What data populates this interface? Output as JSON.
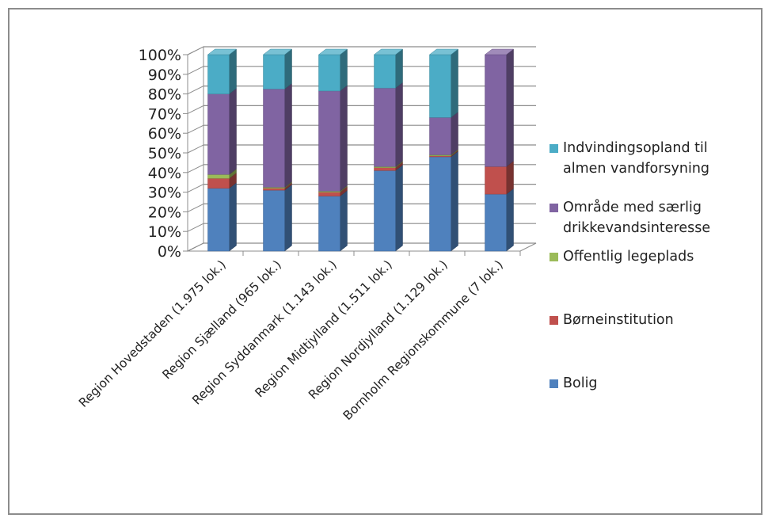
{
  "chart_data": {
    "type": "bar",
    "stacked": true,
    "three_d": true,
    "categories": [
      "Region Hovedstaden (1.975 lok.)",
      "Region Sjælland (965 lok.)",
      "Region Syddanmark (1.143 lok.)",
      "Region Midtjylland (1.511 lok.)",
      "Region Nordjylland (1.129 lok.)",
      "Bornholm Regionskommune (7 lok.)"
    ],
    "series": [
      {
        "name": "Bolig",
        "color": "#4F81BD",
        "values": [
          32,
          31,
          28,
          41,
          48,
          29
        ]
      },
      {
        "name": "Børneinstitution",
        "color": "#C0504D",
        "values": [
          5,
          1,
          2,
          1.5,
          0.5,
          14
        ]
      },
      {
        "name": "Offentlig legeplads",
        "color": "#9BBB59",
        "values": [
          2,
          0.5,
          0.5,
          0.5,
          0.5,
          0
        ]
      },
      {
        "name": "Område med særlig drikkevandsinteresse",
        "color": "#8064A2",
        "values": [
          41,
          50,
          51,
          40,
          19,
          57
        ]
      },
      {
        "name": "Indvindingsopland til almen vandforsyning",
        "color": "#4BACC6",
        "values": [
          20,
          17.5,
          18.5,
          17,
          32,
          0
        ]
      }
    ],
    "y_ticks": [
      "0%",
      "10%",
      "20%",
      "30%",
      "40%",
      "50%",
      "60%",
      "70%",
      "80%",
      "90%",
      "100%"
    ],
    "ylim": [
      0,
      100
    ],
    "grid": true,
    "legend_position": "right",
    "legend": [
      {
        "lines": [
          "Indvindingsopland til",
          "almen vandforsyning"
        ],
        "color": "#4BACC6"
      },
      {
        "lines": [
          "Område med særlig",
          "drikkevandsinteresse"
        ],
        "color": "#8064A2"
      },
      {
        "lines": [
          "Offentlig legeplads"
        ],
        "color": "#9BBB59"
      },
      {
        "lines": [
          "Børneinstitution"
        ],
        "color": "#C0504D"
      },
      {
        "lines": [
          "Bolig"
        ],
        "color": "#4F81BD"
      }
    ]
  }
}
